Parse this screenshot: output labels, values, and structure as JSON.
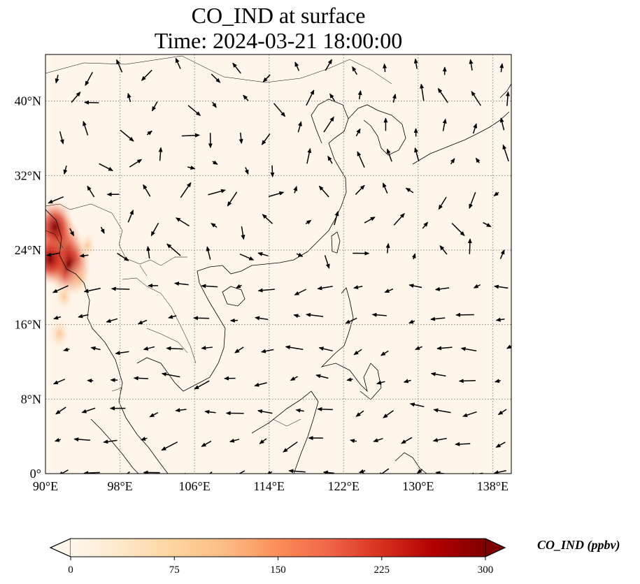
{
  "title_line1": "CO_IND at surface",
  "title_line2": "Time: 2024-03-21 18:00:00",
  "map": {
    "lon_range": [
      90,
      140
    ],
    "lat_range": [
      0,
      45
    ],
    "lon_ticks": [
      {
        "value": 90,
        "label": "90°E"
      },
      {
        "value": 98,
        "label": "98°E"
      },
      {
        "value": 106,
        "label": "106°E"
      },
      {
        "value": 114,
        "label": "114°E"
      },
      {
        "value": 122,
        "label": "122°E"
      },
      {
        "value": 130,
        "label": "130°E"
      },
      {
        "value": 138,
        "label": "138°E"
      }
    ],
    "lat_ticks": [
      {
        "value": 0,
        "label": "0°"
      },
      {
        "value": 8,
        "label": "8°N"
      },
      {
        "value": 16,
        "label": "16°N"
      },
      {
        "value": 24,
        "label": "24°N"
      },
      {
        "value": 32,
        "label": "32°N"
      },
      {
        "value": 40,
        "label": "40°N"
      }
    ],
    "gridlines": true,
    "background_color": "#fff5eb",
    "hotspots": [
      {
        "lon": 91.5,
        "lat": 24.2,
        "value": 290
      },
      {
        "lon": 92.5,
        "lat": 22.5,
        "value": 260
      },
      {
        "lon": 91.0,
        "lat": 26.5,
        "value": 220
      },
      {
        "lon": 90.5,
        "lat": 23.0,
        "value": 200
      },
      {
        "lon": 93.5,
        "lat": 21.0,
        "value": 130
      },
      {
        "lon": 91.5,
        "lat": 15.0,
        "value": 90
      },
      {
        "lon": 92.0,
        "lat": 19.0,
        "value": 70
      },
      {
        "lon": 94.5,
        "lat": 24.5,
        "value": 60
      }
    ]
  },
  "colorbar": {
    "label": "CO_IND (ppbv)",
    "min": 0,
    "max": 300,
    "extend": "both",
    "colormap": "OrRd",
    "colors": [
      "#fff7ec",
      "#fee8c8",
      "#fdd49e",
      "#fdbb84",
      "#fc8d59",
      "#ef6548",
      "#d7301f",
      "#b30000",
      "#7f0000"
    ],
    "ticks": [
      {
        "value": 0,
        "label": "0"
      },
      {
        "value": 75,
        "label": "75"
      },
      {
        "value": 150,
        "label": "150"
      },
      {
        "value": 225,
        "label": "225"
      },
      {
        "value": 300,
        "label": "300"
      }
    ]
  }
}
